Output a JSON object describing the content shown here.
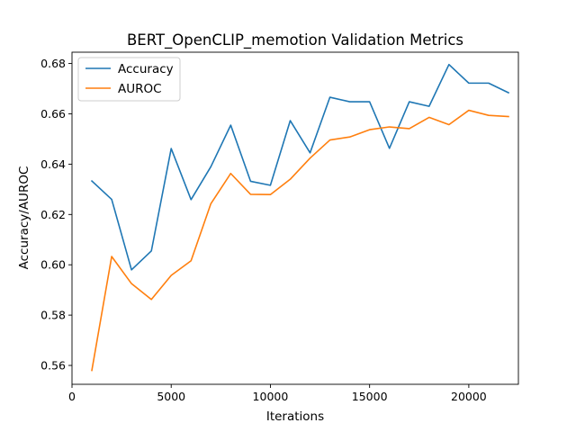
{
  "chart_data": {
    "type": "line",
    "title": "BERT_OpenCLIP_memotion Validation Metrics",
    "xlabel": "Iterations",
    "ylabel": "Accuracy/AUROC",
    "xlim": [
      0,
      22500
    ],
    "ylim": [
      0.5525,
      0.6845
    ],
    "xticks": [
      0,
      5000,
      10000,
      15000,
      20000
    ],
    "xtick_labels": [
      "0",
      "5000",
      "10000",
      "15000",
      "20000"
    ],
    "yticks": [
      0.56,
      0.58,
      0.6,
      0.62,
      0.64,
      0.66,
      0.68
    ],
    "ytick_labels": [
      "0.56",
      "0.58",
      "0.60",
      "0.62",
      "0.64",
      "0.66",
      "0.68"
    ],
    "grid": false,
    "legend_position": "upper-left",
    "x": [
      1000,
      2000,
      3000,
      4000,
      5000,
      6000,
      7000,
      8000,
      9000,
      10000,
      11000,
      12000,
      13000,
      14000,
      15000,
      16000,
      17000,
      18000,
      19000,
      20000,
      21000,
      22000
    ],
    "series": [
      {
        "name": "Accuracy",
        "color": "#1f77b4",
        "values": [
          0.6333,
          0.626,
          0.598,
          0.6055,
          0.6462,
          0.6259,
          0.639,
          0.6555,
          0.6332,
          0.6316,
          0.6573,
          0.6445,
          0.6666,
          0.6648,
          0.6648,
          0.6463,
          0.6648,
          0.663,
          0.6796,
          0.6722,
          0.6722,
          0.6684
        ]
      },
      {
        "name": "AUROC",
        "color": "#ff7f0e",
        "values": [
          0.558,
          0.6033,
          0.5925,
          0.5862,
          0.5958,
          0.6016,
          0.6243,
          0.6363,
          0.628,
          0.6279,
          0.634,
          0.6424,
          0.6496,
          0.6508,
          0.6537,
          0.6548,
          0.6541,
          0.6586,
          0.6557,
          0.6614,
          0.6594,
          0.6589
        ]
      }
    ]
  }
}
